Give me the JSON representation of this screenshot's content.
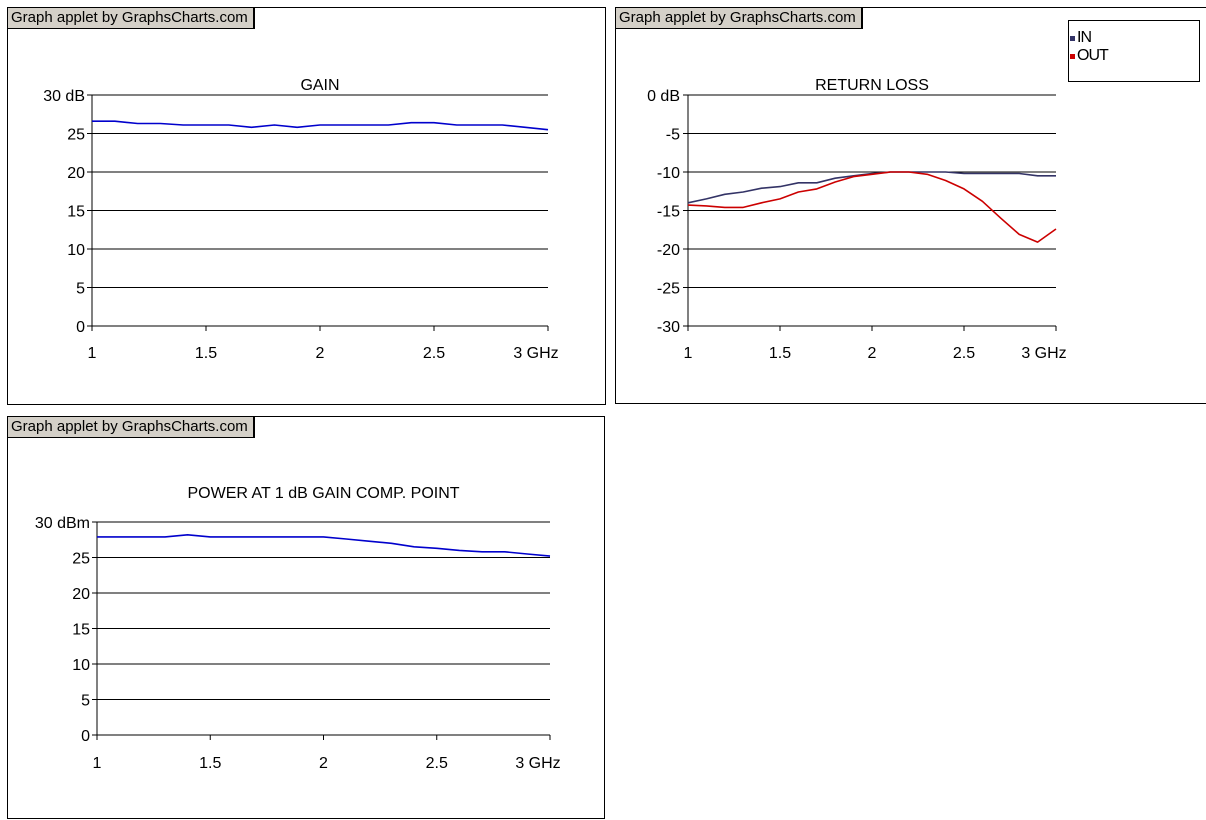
{
  "credit_text": "Graph applet by GraphsCharts.com",
  "colors": {
    "gain": "#0000cc",
    "in": "#333366",
    "out": "#cc0000"
  },
  "chart_data": [
    {
      "id": "gain",
      "type": "line",
      "title": "GAIN",
      "x_ticks": [
        "1",
        "1.5",
        "2",
        "2.5",
        "3 GHz"
      ],
      "y_ticks": [
        "0",
        "5",
        "10",
        "15",
        "20",
        "25",
        "30 dB"
      ],
      "xlim": [
        1,
        3
      ],
      "ylim": [
        0,
        30
      ],
      "grid": true,
      "x": [
        1.0,
        1.1,
        1.2,
        1.3,
        1.4,
        1.5,
        1.6,
        1.7,
        1.8,
        1.9,
        2.0,
        2.1,
        2.2,
        2.3,
        2.4,
        2.5,
        2.6,
        2.7,
        2.8,
        2.9,
        3.0
      ],
      "series": [
        {
          "color": "#0000cc",
          "values": [
            26.6,
            26.6,
            26.3,
            26.3,
            26.1,
            26.1,
            26.1,
            25.8,
            26.1,
            25.8,
            26.1,
            26.1,
            26.1,
            26.1,
            26.4,
            26.4,
            26.1,
            26.1,
            26.1,
            25.8,
            25.5
          ]
        }
      ]
    },
    {
      "id": "return",
      "type": "line",
      "title": "RETURN LOSS",
      "x_ticks": [
        "1",
        "1.5",
        "2",
        "2.5",
        "3 GHz"
      ],
      "y_ticks": [
        "-30",
        "-25",
        "-20",
        "-15",
        "-10",
        "-5",
        "0 dB"
      ],
      "xlim": [
        1,
        3
      ],
      "ylim": [
        -30,
        0
      ],
      "grid": true,
      "legend": "top-right",
      "x": [
        1.0,
        1.1,
        1.2,
        1.3,
        1.4,
        1.5,
        1.6,
        1.7,
        1.8,
        1.9,
        2.0,
        2.1,
        2.2,
        2.3,
        2.4,
        2.5,
        2.6,
        2.7,
        2.8,
        2.9,
        3.0
      ],
      "series": [
        {
          "name": "IN",
          "color": "#333366",
          "values": [
            -14.0,
            -13.5,
            -12.9,
            -12.6,
            -12.1,
            -11.9,
            -11.4,
            -11.4,
            -10.8,
            -10.5,
            -10.2,
            -10.0,
            -10.0,
            -10.0,
            -10.0,
            -10.2,
            -10.2,
            -10.2,
            -10.2,
            -10.5,
            -10.5
          ]
        },
        {
          "name": "OUT",
          "color": "#cc0000",
          "values": [
            -14.3,
            -14.4,
            -14.6,
            -14.6,
            -14.0,
            -13.5,
            -12.6,
            -12.2,
            -11.3,
            -10.6,
            -10.3,
            -10.0,
            -10.0,
            -10.3,
            -11.1,
            -12.2,
            -13.8,
            -16.0,
            -18.1,
            -19.1,
            -17.4
          ]
        }
      ]
    },
    {
      "id": "power",
      "type": "line",
      "title": "POWER AT 1 dB GAIN COMP. POINT",
      "x_ticks": [
        "1",
        "1.5",
        "2",
        "2.5",
        "3 GHz"
      ],
      "y_ticks": [
        "0",
        "5",
        "10",
        "15",
        "20",
        "25",
        "30 dBm"
      ],
      "xlim": [
        1,
        3
      ],
      "ylim": [
        0,
        30
      ],
      "grid": true,
      "x": [
        1.0,
        1.1,
        1.2,
        1.3,
        1.4,
        1.5,
        1.6,
        1.7,
        1.8,
        1.9,
        2.0,
        2.1,
        2.2,
        2.3,
        2.4,
        2.5,
        2.6,
        2.7,
        2.8,
        2.9,
        3.0
      ],
      "series": [
        {
          "color": "#0000cc",
          "values": [
            27.9,
            27.9,
            27.9,
            27.9,
            28.2,
            27.9,
            27.9,
            27.9,
            27.9,
            27.9,
            27.9,
            27.6,
            27.3,
            27.0,
            26.5,
            26.3,
            26.0,
            25.8,
            25.8,
            25.5,
            25.2
          ]
        }
      ]
    }
  ]
}
